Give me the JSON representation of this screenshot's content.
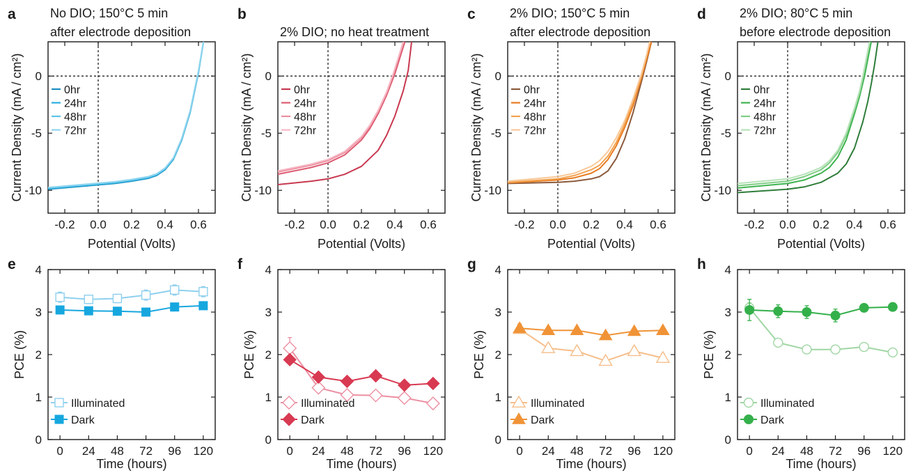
{
  "chart_data": [
    {
      "panel": "a",
      "type": "line",
      "title": [
        "No DIO; 150°C 5 min",
        "after electrode deposition"
      ],
      "xlabel": "Potential (Volts)",
      "ylabel": "Current Density (mA / cm²)",
      "xlim": [
        -0.3,
        0.7
      ],
      "ylim": [
        -12,
        3
      ],
      "xticks": [
        -0.2,
        0.0,
        0.2,
        0.4,
        0.6
      ],
      "yticks": [
        -10,
        -5,
        0
      ],
      "legend_position": "middle-left",
      "series": [
        {
          "name": "0hr",
          "color": "#1f8fc0",
          "x": [
            -0.3,
            -0.1,
            0.1,
            0.2,
            0.3,
            0.35,
            0.4,
            0.45,
            0.5,
            0.55,
            0.6,
            0.63
          ],
          "y": [
            -9.9,
            -9.65,
            -9.4,
            -9.2,
            -8.95,
            -8.7,
            -8.2,
            -7.3,
            -5.6,
            -3.2,
            0.3,
            3.0
          ]
        },
        {
          "name": "24hr",
          "color": "#29aee0",
          "x": [
            -0.3,
            -0.1,
            0.1,
            0.2,
            0.3,
            0.35,
            0.4,
            0.45,
            0.5,
            0.55,
            0.6,
            0.63
          ],
          "y": [
            -9.85,
            -9.6,
            -9.35,
            -9.15,
            -8.9,
            -8.65,
            -8.15,
            -7.25,
            -5.55,
            -3.15,
            0.35,
            3.0
          ]
        },
        {
          "name": "48hr",
          "color": "#5cc3e8",
          "x": [
            -0.3,
            -0.1,
            0.1,
            0.2,
            0.3,
            0.35,
            0.4,
            0.45,
            0.5,
            0.55,
            0.6,
            0.63
          ],
          "y": [
            -9.8,
            -9.55,
            -9.3,
            -9.1,
            -8.85,
            -8.6,
            -8.1,
            -7.2,
            -5.5,
            -3.1,
            0.4,
            3.0
          ]
        },
        {
          "name": "72hr",
          "color": "#8fd5ef",
          "x": [
            -0.3,
            -0.1,
            0.1,
            0.2,
            0.3,
            0.35,
            0.4,
            0.45,
            0.5,
            0.55,
            0.6,
            0.63
          ],
          "y": [
            -9.75,
            -9.5,
            -9.25,
            -9.05,
            -8.8,
            -8.55,
            -8.05,
            -7.15,
            -5.45,
            -3.05,
            0.45,
            3.0
          ]
        }
      ]
    },
    {
      "panel": "b",
      "type": "line",
      "title": [
        "2% DIO; no heat treatment"
      ],
      "xlabel": "Potential (Volts)",
      "ylabel": "Current Density (mA / cm²)",
      "xlim": [
        -0.3,
        0.7
      ],
      "ylim": [
        -12,
        3
      ],
      "xticks": [
        -0.2,
        0.0,
        0.2,
        0.4,
        0.6
      ],
      "yticks": [
        -10,
        -5,
        0
      ],
      "legend_position": "middle-left",
      "series": [
        {
          "name": "0hr",
          "color": "#c8384f",
          "x": [
            -0.3,
            -0.1,
            0.0,
            0.1,
            0.2,
            0.3,
            0.35,
            0.4,
            0.45,
            0.48,
            0.5
          ],
          "y": [
            -9.5,
            -9.2,
            -9.0,
            -8.6,
            -7.9,
            -6.5,
            -5.2,
            -3.5,
            -1.3,
            0.5,
            3.0
          ]
        },
        {
          "name": "24hr",
          "color": "#dd5b70",
          "x": [
            -0.3,
            -0.1,
            0.0,
            0.1,
            0.2,
            0.25,
            0.3,
            0.35,
            0.4,
            0.43,
            0.46
          ],
          "y": [
            -8.6,
            -8.0,
            -7.6,
            -6.9,
            -5.6,
            -4.6,
            -3.3,
            -1.7,
            0.2,
            1.6,
            3.0
          ]
        },
        {
          "name": "48hr",
          "color": "#ec8ea0",
          "x": [
            -0.3,
            -0.1,
            0.0,
            0.1,
            0.2,
            0.25,
            0.3,
            0.35,
            0.39,
            0.42,
            0.45
          ],
          "y": [
            -8.4,
            -7.8,
            -7.4,
            -6.7,
            -5.4,
            -4.4,
            -3.1,
            -1.5,
            0.1,
            1.5,
            3.0
          ]
        },
        {
          "name": "72hr",
          "color": "#f6b8c4",
          "x": [
            -0.3,
            -0.1,
            0.0,
            0.1,
            0.2,
            0.25,
            0.3,
            0.35,
            0.39,
            0.42,
            0.45
          ],
          "y": [
            -8.3,
            -7.7,
            -7.3,
            -6.6,
            -5.3,
            -4.3,
            -3.0,
            -1.4,
            0.2,
            1.6,
            3.0
          ]
        }
      ]
    },
    {
      "panel": "c",
      "type": "line",
      "title": [
        "2% DIO; 150°C 5 min",
        "after electrode deposition"
      ],
      "xlabel": "Potential (Volts)",
      "ylabel": "Current Density (mA / cm²)",
      "xlim": [
        -0.3,
        0.7
      ],
      "ylim": [
        -12,
        3
      ],
      "xticks": [
        -0.2,
        0.0,
        0.2,
        0.4,
        0.6
      ],
      "yticks": [
        -10,
        -5,
        0
      ],
      "legend_position": "middle-left",
      "series": [
        {
          "name": "0hr",
          "color": "#8b5a3c",
          "x": [
            -0.3,
            0.0,
            0.1,
            0.2,
            0.25,
            0.3,
            0.35,
            0.4,
            0.45,
            0.5,
            0.53,
            0.56
          ],
          "y": [
            -9.4,
            -9.3,
            -9.2,
            -9.0,
            -8.8,
            -8.3,
            -7.2,
            -5.5,
            -3.2,
            -0.5,
            1.2,
            3.0
          ]
        },
        {
          "name": "24hr",
          "color": "#e87c20",
          "x": [
            -0.3,
            0.0,
            0.1,
            0.2,
            0.25,
            0.3,
            0.35,
            0.4,
            0.45,
            0.5,
            0.53,
            0.56
          ],
          "y": [
            -9.35,
            -9.1,
            -8.9,
            -8.5,
            -8.1,
            -7.3,
            -6.1,
            -4.5,
            -2.6,
            -0.2,
            1.4,
            3.0
          ]
        },
        {
          "name": "48hr",
          "color": "#f3a24f",
          "x": [
            -0.3,
            0.0,
            0.1,
            0.2,
            0.25,
            0.3,
            0.35,
            0.4,
            0.45,
            0.5,
            0.53,
            0.55
          ],
          "y": [
            -9.3,
            -9.0,
            -8.7,
            -8.2,
            -7.8,
            -7.0,
            -5.8,
            -4.2,
            -2.3,
            0.0,
            1.7,
            3.0
          ]
        },
        {
          "name": "72hr",
          "color": "#f8c99a",
          "x": [
            -0.3,
            0.0,
            0.1,
            0.2,
            0.25,
            0.3,
            0.35,
            0.4,
            0.45,
            0.5,
            0.53,
            0.55
          ],
          "y": [
            -9.2,
            -8.8,
            -8.5,
            -7.9,
            -7.4,
            -6.6,
            -5.4,
            -3.9,
            -2.0,
            0.2,
            1.8,
            3.0
          ]
        }
      ]
    },
    {
      "panel": "d",
      "type": "line",
      "title": [
        "2% DIO; 80°C 5 min",
        "before electrode deposition"
      ],
      "xlabel": "Potential (Volts)",
      "ylabel": "Current Density (mA / cm²)",
      "xlim": [
        -0.3,
        0.7
      ],
      "ylim": [
        -12,
        3
      ],
      "xticks": [
        -0.2,
        0.0,
        0.2,
        0.4,
        0.6
      ],
      "yticks": [
        -10,
        -5,
        0
      ],
      "legend_position": "middle-left",
      "series": [
        {
          "name": "0hr",
          "color": "#2e7d3a",
          "x": [
            -0.3,
            0.0,
            0.1,
            0.2,
            0.3,
            0.35,
            0.4,
            0.45,
            0.48,
            0.5,
            0.52,
            0.54
          ],
          "y": [
            -10.2,
            -9.9,
            -9.7,
            -9.3,
            -8.5,
            -7.7,
            -6.3,
            -4.0,
            -2.2,
            -0.7,
            1.0,
            3.0
          ]
        },
        {
          "name": "24hr",
          "color": "#3fb34f",
          "x": [
            -0.3,
            0.0,
            0.1,
            0.2,
            0.25,
            0.3,
            0.35,
            0.4,
            0.43,
            0.46,
            0.48,
            0.5
          ],
          "y": [
            -9.8,
            -9.4,
            -9.1,
            -8.5,
            -8.0,
            -7.1,
            -5.6,
            -3.3,
            -1.8,
            0.0,
            1.5,
            3.0
          ]
        },
        {
          "name": "48hr",
          "color": "#7fcd85",
          "x": [
            -0.3,
            0.0,
            0.1,
            0.2,
            0.25,
            0.3,
            0.35,
            0.4,
            0.43,
            0.45,
            0.47,
            0.49
          ],
          "y": [
            -9.6,
            -9.2,
            -8.8,
            -8.2,
            -7.6,
            -6.7,
            -5.2,
            -3.0,
            -1.5,
            -0.2,
            1.3,
            3.0
          ]
        },
        {
          "name": "72hr",
          "color": "#b6e2b8",
          "x": [
            -0.3,
            0.0,
            0.1,
            0.2,
            0.25,
            0.3,
            0.35,
            0.4,
            0.43,
            0.45,
            0.47,
            0.49
          ],
          "y": [
            -9.4,
            -9.0,
            -8.6,
            -8.0,
            -7.4,
            -6.5,
            -5.0,
            -2.8,
            -1.3,
            0.0,
            1.5,
            3.0
          ]
        }
      ]
    },
    {
      "panel": "e",
      "type": "line",
      "xlabel": "Time (hours)",
      "ylabel": "PCE (%)",
      "xlim": [
        -10,
        130
      ],
      "ylim": [
        0,
        4
      ],
      "xticks": [
        0,
        24,
        48,
        72,
        96,
        120
      ],
      "yticks": [
        0,
        1,
        2,
        3,
        4
      ],
      "legend_position": "bottom-left",
      "series": [
        {
          "name": "Illuminated",
          "color": "#8fd0ee",
          "marker": "square-open",
          "x": [
            0,
            24,
            48,
            72,
            96,
            120
          ],
          "y": [
            3.35,
            3.3,
            3.32,
            3.4,
            3.52,
            3.48
          ],
          "err": [
            0.12,
            0.1,
            0.1,
            0.12,
            0.12,
            0.12
          ]
        },
        {
          "name": "Dark",
          "color": "#16a7df",
          "marker": "square-filled",
          "x": [
            0,
            24,
            48,
            72,
            96,
            120
          ],
          "y": [
            3.05,
            3.03,
            3.02,
            3.0,
            3.12,
            3.15
          ],
          "err": [
            0.06,
            0.05,
            0.05,
            0.06,
            0.06,
            0.08
          ]
        }
      ]
    },
    {
      "panel": "f",
      "type": "line",
      "xlabel": "Time (hours)",
      "ylabel": "PCE (%)",
      "xlim": [
        -10,
        130
      ],
      "ylim": [
        0,
        4
      ],
      "xticks": [
        0,
        24,
        48,
        72,
        96,
        120
      ],
      "yticks": [
        0,
        1,
        2,
        3,
        4
      ],
      "legend_position": "bottom-left",
      "series": [
        {
          "name": "Illuminated",
          "color": "#ec8fa2",
          "marker": "diamond-open",
          "x": [
            0,
            24,
            48,
            72,
            96,
            120
          ],
          "y": [
            2.15,
            1.22,
            1.05,
            1.04,
            0.98,
            0.85
          ],
          "err": [
            0.25,
            0.08,
            0.08,
            0.08,
            0.08,
            0.08
          ]
        },
        {
          "name": "Dark",
          "color": "#d83a52",
          "marker": "diamond-filled",
          "x": [
            0,
            24,
            48,
            72,
            96,
            120
          ],
          "y": [
            1.88,
            1.47,
            1.37,
            1.5,
            1.28,
            1.32
          ],
          "err": [
            0.06,
            0.05,
            0.05,
            0.05,
            0.05,
            0.05
          ]
        }
      ]
    },
    {
      "panel": "g",
      "type": "line",
      "xlabel": "Time (hours)",
      "ylabel": "PCE (%)",
      "xlim": [
        -10,
        130
      ],
      "ylim": [
        0,
        4
      ],
      "xticks": [
        0,
        24,
        48,
        72,
        96,
        120
      ],
      "yticks": [
        0,
        1,
        2,
        3,
        4
      ],
      "legend_position": "bottom-left",
      "series": [
        {
          "name": "Illuminated",
          "color": "#f5be8a",
          "marker": "triangle-open",
          "x": [
            0,
            24,
            48,
            72,
            96,
            120
          ],
          "y": [
            2.6,
            2.15,
            2.08,
            1.85,
            2.08,
            1.92
          ],
          "err": [
            0.1,
            0.1,
            0.1,
            0.1,
            0.1,
            0.1
          ]
        },
        {
          "name": "Dark",
          "color": "#f09337",
          "marker": "triangle-filled",
          "x": [
            0,
            24,
            48,
            72,
            96,
            120
          ],
          "y": [
            2.62,
            2.57,
            2.57,
            2.45,
            2.55,
            2.57
          ],
          "err": [
            0.1,
            0.06,
            0.06,
            0.06,
            0.06,
            0.06
          ]
        }
      ]
    },
    {
      "panel": "h",
      "type": "line",
      "xlabel": "Time (hours)",
      "ylabel": "PCE (%)",
      "xlim": [
        -10,
        130
      ],
      "ylim": [
        0,
        4
      ],
      "xticks": [
        0,
        24,
        48,
        72,
        96,
        120
      ],
      "yticks": [
        0,
        1,
        2,
        3,
        4
      ],
      "legend_position": "bottom-left",
      "series": [
        {
          "name": "Illuminated",
          "color": "#9fd6a3",
          "marker": "circle-open",
          "x": [
            0,
            24,
            48,
            72,
            96,
            120
          ],
          "y": [
            3.1,
            2.28,
            2.12,
            2.12,
            2.18,
            2.05
          ],
          "err": [
            0.12,
            0.08,
            0.08,
            0.08,
            0.08,
            0.08
          ]
        },
        {
          "name": "Dark",
          "color": "#34b04b",
          "marker": "circle-filled",
          "x": [
            0,
            24,
            48,
            72,
            96,
            120
          ],
          "y": [
            3.05,
            3.02,
            3.0,
            2.92,
            3.1,
            3.12
          ],
          "err": [
            0.25,
            0.15,
            0.15,
            0.15,
            0.07,
            0.07
          ]
        }
      ]
    }
  ]
}
